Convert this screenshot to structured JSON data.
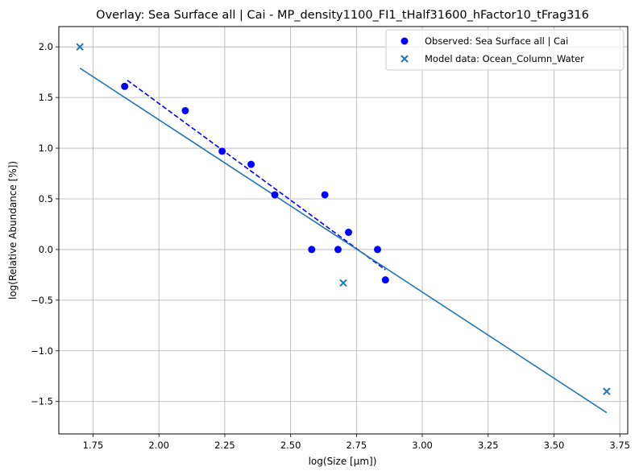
{
  "chart_data": {
    "type": "scatter",
    "title": "Overlay: Sea Surface all | Cai - MP_density1100_FI1_tHalf31600_hFactor10_tFrag316",
    "xlabel": "log(Size [μm])",
    "ylabel": "log(Relative Abundance [%])",
    "xlim": [
      1.62,
      3.78
    ],
    "ylim": [
      -1.82,
      2.2
    ],
    "xticks": [
      1.75,
      2.0,
      2.25,
      2.5,
      2.75,
      3.0,
      3.25,
      3.5,
      3.75
    ],
    "xtick_labels": [
      "1.75",
      "2.00",
      "2.25",
      "2.50",
      "2.75",
      "3.00",
      "3.25",
      "3.50",
      "3.75"
    ],
    "yticks": [
      -1.5,
      -1.0,
      -0.5,
      0.0,
      0.5,
      1.0,
      1.5,
      2.0
    ],
    "ytick_labels": [
      "−1.5",
      "−1.0",
      "−0.5",
      "0.0",
      "0.5",
      "1.0",
      "1.5",
      "2.0"
    ],
    "grid": true,
    "legend_position": "top-right",
    "series": [
      {
        "name": "Observed: Sea Surface all | Cai",
        "kind": "scatter",
        "marker": "circle",
        "color": "#0000ff",
        "points": [
          [
            1.87,
            1.61
          ],
          [
            2.1,
            1.37
          ],
          [
            2.24,
            0.97
          ],
          [
            2.35,
            0.84
          ],
          [
            2.44,
            0.54
          ],
          [
            2.58,
            0.0
          ],
          [
            2.63,
            0.54
          ],
          [
            2.68,
            0.0
          ],
          [
            2.72,
            0.17
          ],
          [
            2.83,
            0.0
          ],
          [
            2.86,
            -0.3
          ]
        ]
      },
      {
        "name": "Model data: Ocean_Column_Water",
        "kind": "scatter",
        "marker": "x",
        "color": "#1f77b4",
        "points": [
          [
            1.7,
            2.0
          ],
          [
            2.7,
            -0.33
          ],
          [
            3.7,
            -1.4
          ]
        ]
      },
      {
        "kind": "line",
        "style": "dashed",
        "color": "#0000ff",
        "points": [
          [
            1.88,
            1.67
          ],
          [
            2.86,
            -0.2
          ]
        ]
      },
      {
        "kind": "line",
        "style": "solid",
        "color": "#1f77b4",
        "points": [
          [
            1.7,
            1.79
          ],
          [
            3.7,
            -1.61
          ]
        ]
      }
    ]
  }
}
